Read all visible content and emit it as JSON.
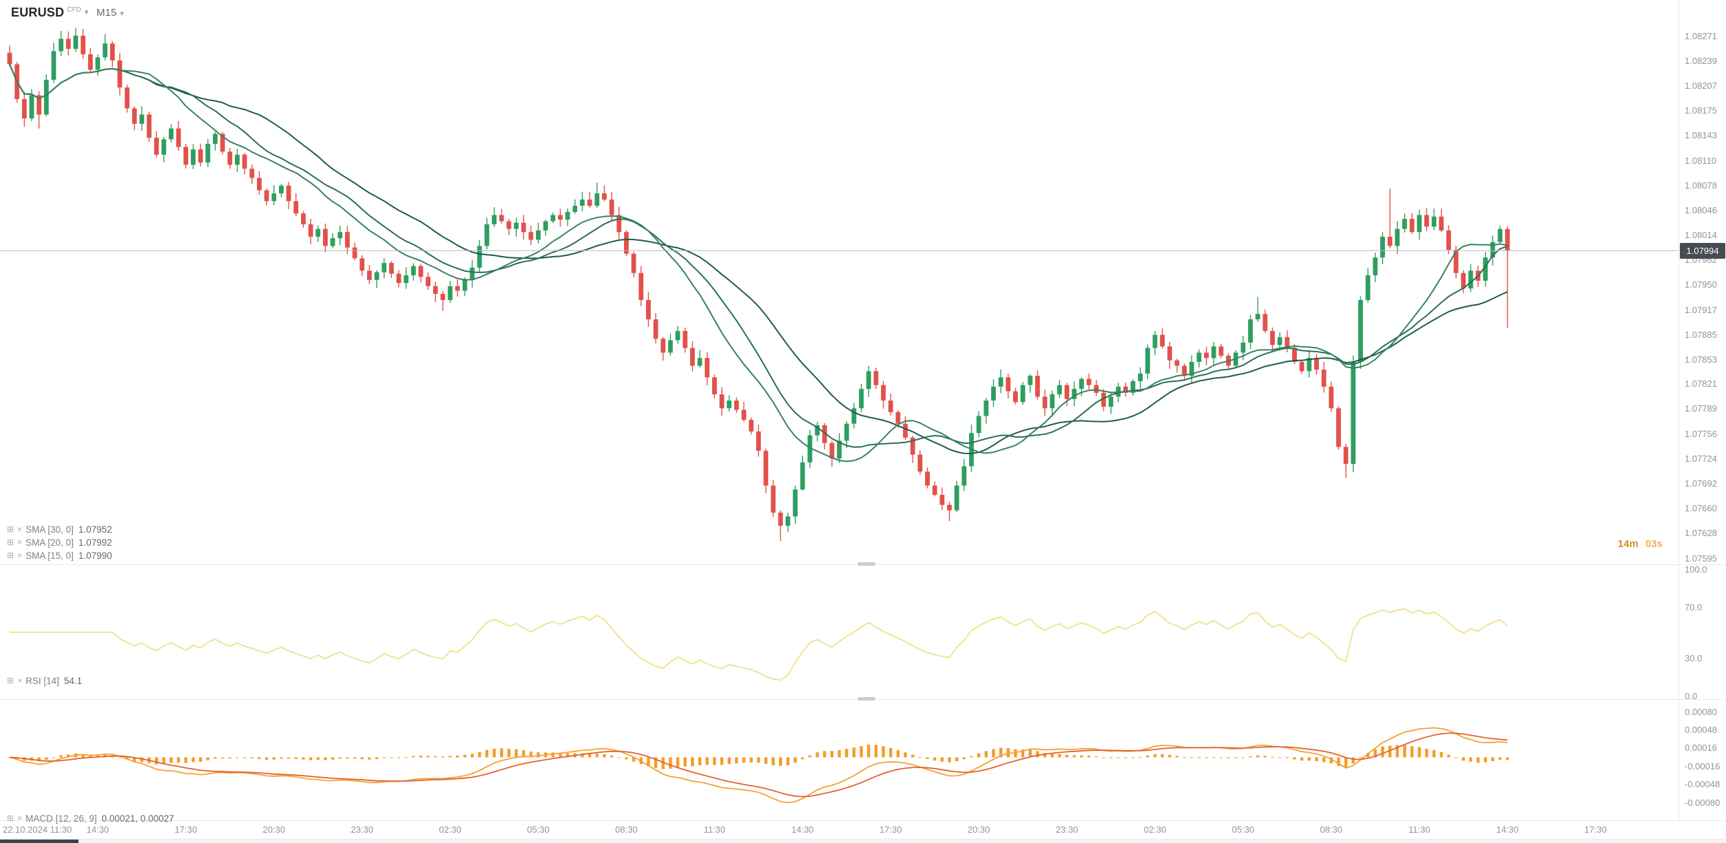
{
  "header": {
    "symbol": "EURUSD",
    "symbol_type": "CFD",
    "timeframe": "M15"
  },
  "icons": {
    "caret_down": "▾",
    "indicator_settings": "⊞",
    "indicator_close": "×"
  },
  "countdown": {
    "minutes": "14m",
    "seconds": "03s"
  },
  "chart_data": {
    "type": "candlestick",
    "symbol": "EURUSD",
    "timeframe": "M15",
    "current_price": 1.07994,
    "current_price_label": "1.07994",
    "first_open": 1.0825,
    "closes": [
      1.08235,
      1.0819,
      1.08165,
      1.08195,
      1.0817,
      1.08215,
      1.08252,
      1.08268,
      1.08255,
      1.08272,
      1.08248,
      1.08228,
      1.08244,
      1.08262,
      1.0824,
      1.08205,
      1.08178,
      1.08158,
      1.0817,
      1.0814,
      1.08118,
      1.08138,
      1.08152,
      1.08128,
      1.08105,
      1.08125,
      1.08108,
      1.08132,
      1.08145,
      1.08122,
      1.08105,
      1.08118,
      1.081,
      1.08088,
      1.08072,
      1.08058,
      1.08068,
      1.08078,
      1.08058,
      1.08042,
      1.08028,
      1.08012,
      1.08022,
      1.08,
      1.0801,
      1.08018,
      1.07998,
      1.07984,
      1.07968,
      1.07956,
      1.07966,
      1.07978,
      1.07964,
      1.07952,
      1.07962,
      1.07974,
      1.0796,
      1.07948,
      1.07938,
      1.0793,
      1.07948,
      1.07942,
      1.07956,
      1.07972,
      1.08,
      1.08028,
      1.0804,
      1.08032,
      1.08022,
      1.0803,
      1.08018,
      1.08008,
      1.0802,
      1.08032,
      1.0804,
      1.08034,
      1.08044,
      1.08052,
      1.0806,
      1.08052,
      1.08068,
      1.0806,
      1.0804,
      1.08018,
      1.0799,
      1.07965,
      1.0793,
      1.07905,
      1.0788,
      1.07862,
      1.07878,
      1.0789,
      1.07868,
      1.07845,
      1.07855,
      1.0783,
      1.07808,
      1.0779,
      1.078,
      1.07788,
      1.07775,
      1.0776,
      1.07735,
      1.0769,
      1.07655,
      1.07638,
      1.0765,
      1.07685,
      1.0772,
      1.07755,
      1.07768,
      1.07745,
      1.07725,
      1.07748,
      1.0777,
      1.0779,
      1.07815,
      1.07838,
      1.0782,
      1.078,
      1.07785,
      1.0777,
      1.07752,
      1.0773,
      1.07708,
      1.0769,
      1.07678,
      1.07665,
      1.07658,
      1.0769,
      1.07715,
      1.07758,
      1.0778,
      1.078,
      1.07818,
      1.0783,
      1.07812,
      1.07798,
      1.0782,
      1.07832,
      1.07805,
      1.0779,
      1.07808,
      1.0782,
      1.07802,
      1.07815,
      1.07828,
      1.0782,
      1.0781,
      1.07792,
      1.07805,
      1.07818,
      1.0781,
      1.07825,
      1.07835,
      1.07868,
      1.07885,
      1.0787,
      1.07852,
      1.07845,
      1.07832,
      1.0785,
      1.07862,
      1.07855,
      1.0787,
      1.07858,
      1.07845,
      1.07862,
      1.07875,
      1.07905,
      1.07912,
      1.0789,
      1.07872,
      1.07882,
      1.07868,
      1.0785,
      1.07838,
      1.07855,
      1.0784,
      1.07818,
      1.0779,
      1.0774,
      1.07718,
      1.0785,
      1.0793,
      1.07962,
      1.07985,
      1.08012,
      1.08,
      1.08022,
      1.08035,
      1.08018,
      1.0804,
      1.08025,
      1.08038,
      1.0802,
      1.07995,
      1.07965,
      1.07945,
      1.07968,
      1.07955,
      1.07985,
      1.08005,
      1.08022,
      1.07994
    ],
    "wick_overrides": {
      "4": [
        5e-05,
        0.00018
      ],
      "9": [
        0.0001,
        4e-05
      ],
      "13": [
        0.00012,
        4e-05
      ],
      "59": [
        4e-05,
        0.00014
      ],
      "80": [
        0.00014,
        3e-05
      ],
      "105": [
        3e-05,
        0.0002
      ],
      "128": [
        4e-05,
        0.00014
      ],
      "170": [
        0.00022,
        3e-05
      ],
      "182": [
        4e-05,
        0.00018
      ],
      "188": [
        0.00062,
        3e-05
      ],
      "204": [
        3e-05,
        0.001
      ]
    },
    "price_ticks": [
      "1.08271",
      "1.08239",
      "1.08207",
      "1.08175",
      "1.08143",
      "1.08110",
      "1.08078",
      "1.08046",
      "1.08014",
      "1.07982",
      "1.07950",
      "1.07917",
      "1.07885",
      "1.07853",
      "1.07821",
      "1.07789",
      "1.07756",
      "1.07724",
      "1.07692",
      "1.07660",
      "1.07628",
      "1.07595"
    ],
    "time_ticks": [
      {
        "i": 0,
        "label": "22.10.2024 11:30"
      },
      {
        "i": 12,
        "label": "14:30"
      },
      {
        "i": 24,
        "label": "17:30"
      },
      {
        "i": 36,
        "label": "20:30"
      },
      {
        "i": 48,
        "label": "23:30"
      },
      {
        "i": 60,
        "label": "02:30"
      },
      {
        "i": 72,
        "label": "05:30"
      },
      {
        "i": 84,
        "label": "08:30"
      },
      {
        "i": 96,
        "label": "11:30"
      },
      {
        "i": 108,
        "label": "14:30"
      },
      {
        "i": 120,
        "label": "17:30"
      },
      {
        "i": 132,
        "label": "20:30"
      },
      {
        "i": 144,
        "label": "23:30"
      },
      {
        "i": 156,
        "label": "02:30"
      },
      {
        "i": 168,
        "label": "05:30"
      },
      {
        "i": 180,
        "label": "08:30"
      },
      {
        "i": 192,
        "label": "11:30"
      },
      {
        "i": 204,
        "label": "14:30"
      },
      {
        "i": 216,
        "label": "17:30"
      }
    ],
    "overlays": [
      {
        "label": "SMA [30, 0]",
        "value": "1.07952",
        "period": 30,
        "color": "#1e5b49"
      },
      {
        "label": "SMA [20, 0]",
        "value": "1.07992",
        "period": 20,
        "color": "#2a6e57"
      },
      {
        "label": "SMA [15, 0]",
        "value": "1.07990",
        "period": 15,
        "color": "#38825f"
      }
    ],
    "rsi": {
      "label": "RSI [14]",
      "value": "54.1",
      "period": 14,
      "color": "#efe18b",
      "ticks": [
        "100.0",
        "70.0",
        "30.0",
        "0.0"
      ]
    },
    "macd": {
      "label": "MACD [12, 26, 9]",
      "value": "0.00021, 0.00027",
      "fast": 12,
      "slow": 26,
      "signal": 9,
      "line_color": "#f5a033",
      "signal_color": "#e2622d",
      "hist_color": "#f59b28",
      "ticks": [
        "0.00080",
        "0.00048",
        "0.00016",
        "-0.00016",
        "-0.00048",
        "-0.00080"
      ]
    },
    "colors": {
      "up": "#2f9e60",
      "down": "#e2514a",
      "price_line": "#b4b9be",
      "badge_bg": "#454c53"
    }
  }
}
